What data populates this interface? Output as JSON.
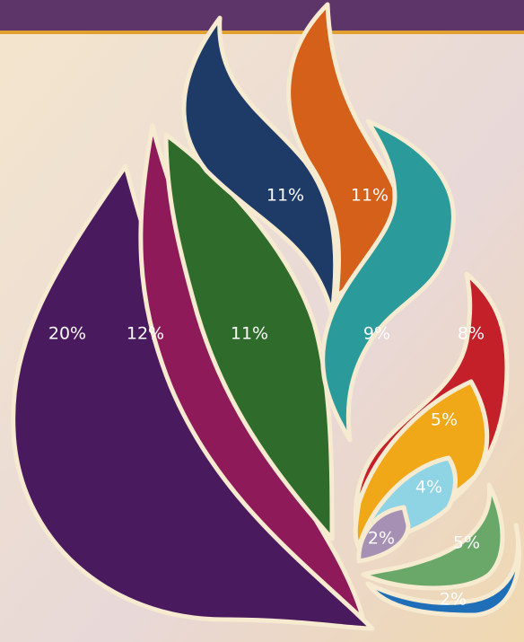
{
  "chart_data": {
    "type": "flame",
    "values": [
      20,
      12,
      11,
      11,
      11,
      9,
      8,
      5,
      4,
      2,
      5,
      2
    ],
    "value_labels": [
      "20%",
      "12%",
      "11%",
      "11%",
      "11%",
      "9%",
      "8%",
      "5%",
      "4%",
      "2%",
      "5%",
      "2%"
    ],
    "colors": [
      "#4a1a5e",
      "#8e1a5a",
      "#2f6b2a",
      "#1e3a66",
      "#d4601a",
      "#2a9a9a",
      "#c3202a",
      "#f0a818",
      "#8ed4e4",
      "#a690b4",
      "#6aa86a",
      "#1f6fb8"
    ]
  }
}
